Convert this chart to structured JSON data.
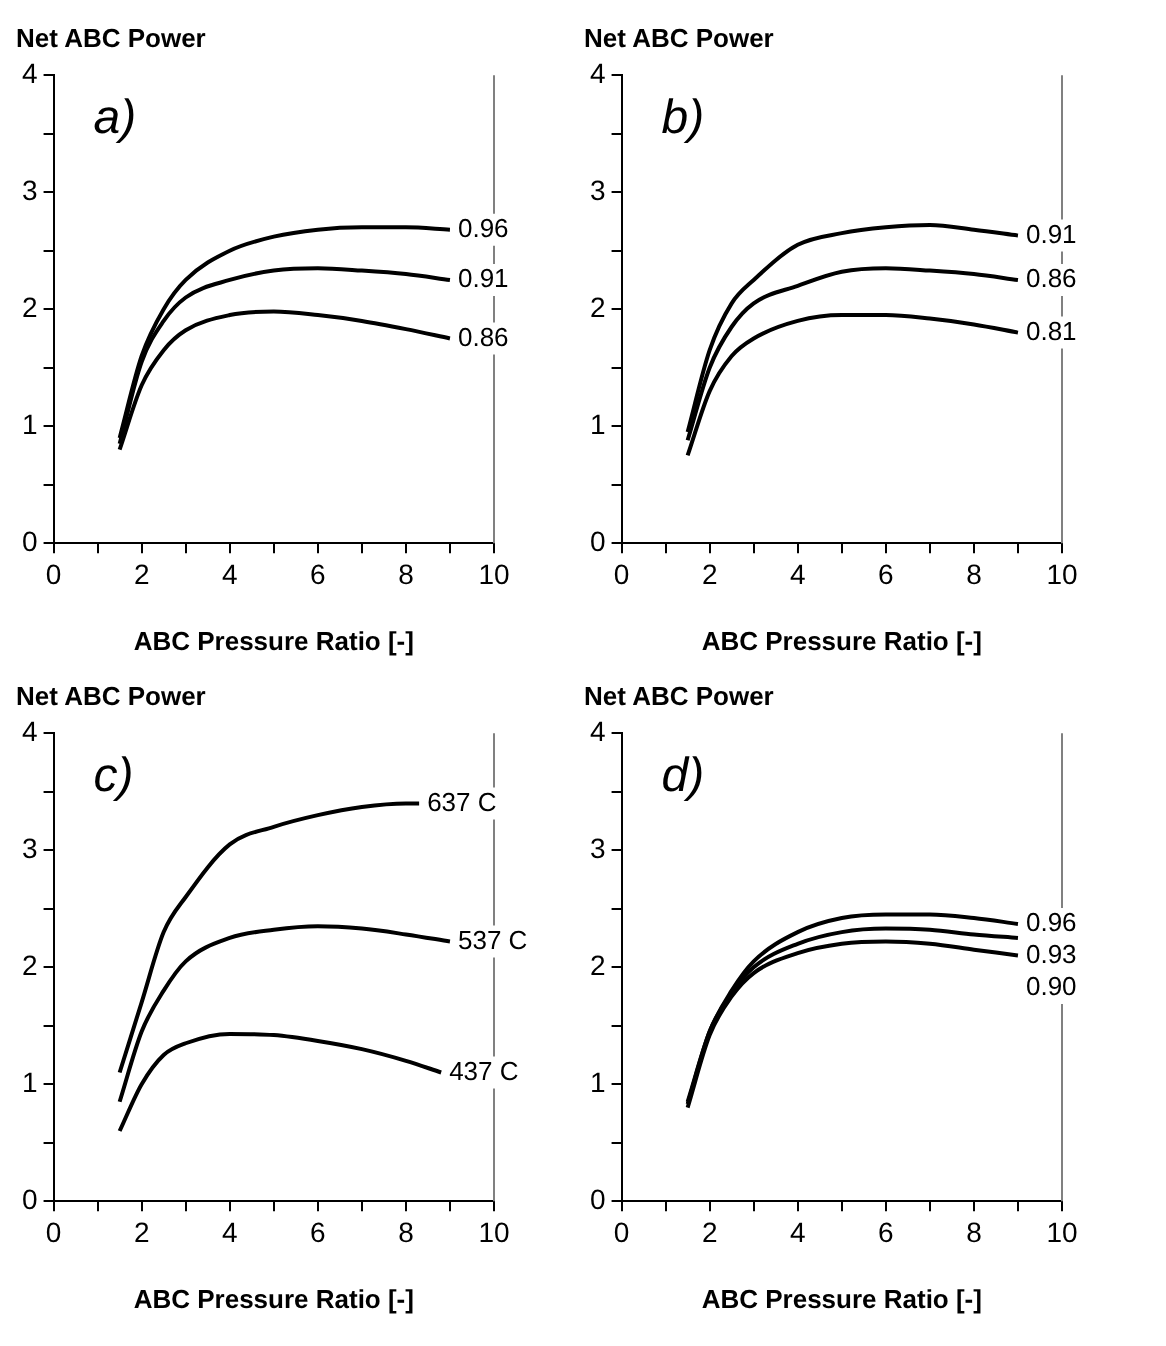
{
  "chart_data": [
    {
      "type": "line",
      "title": "Net ABC Power",
      "xlabel": "ABC Pressure Ratio [-]",
      "annotations": [
        "a)"
      ],
      "xlim": [
        0,
        10
      ],
      "ylim": [
        0,
        4
      ],
      "xticks": [
        0,
        {
          "value": 1,
          "label": null
        },
        2,
        {
          "value": 3,
          "label": null
        },
        4,
        {
          "value": 5,
          "label": null
        },
        6,
        {
          "value": 7,
          "label": null
        },
        8,
        {
          "value": 9,
          "label": null
        },
        10
      ],
      "yticks": [
        0,
        {
          "value": 0.5,
          "label": null
        },
        1,
        {
          "value": 1.5,
          "label": null
        },
        2,
        {
          "value": 2.5,
          "label": null
        },
        3,
        {
          "value": 3.5,
          "label": null
        },
        4
      ],
      "grid": false,
      "legend": false,
      "marker": "none",
      "line_style": "solid",
      "x": [
        1.5,
        2,
        2.5,
        3,
        4,
        5,
        6,
        7,
        8,
        9
      ],
      "series": [
        {
          "name": "0.96",
          "color": "#000000",
          "values": [
            0.9,
            1.6,
            2.0,
            2.25,
            2.5,
            2.62,
            2.68,
            2.7,
            2.7,
            2.68
          ]
        },
        {
          "name": "0.91",
          "color": "#000000",
          "values": [
            0.85,
            1.55,
            1.9,
            2.1,
            2.25,
            2.33,
            2.35,
            2.33,
            2.3,
            2.25
          ]
        },
        {
          "name": "0.86",
          "color": "#000000",
          "values": [
            0.8,
            1.35,
            1.65,
            1.82,
            1.95,
            1.98,
            1.95,
            1.9,
            1.83,
            1.75
          ]
        }
      ]
    },
    {
      "type": "line",
      "title": "Net ABC Power",
      "xlabel": "ABC Pressure Ratio [-]",
      "annotations": [
        "b)"
      ],
      "xlim": [
        0,
        10
      ],
      "ylim": [
        0,
        4
      ],
      "xticks": [
        0,
        {
          "value": 1,
          "label": null
        },
        2,
        {
          "value": 3,
          "label": null
        },
        4,
        {
          "value": 5,
          "label": null
        },
        6,
        {
          "value": 7,
          "label": null
        },
        8,
        {
          "value": 9,
          "label": null
        },
        10
      ],
      "yticks": [
        0,
        {
          "value": 0.5,
          "label": null
        },
        1,
        {
          "value": 1.5,
          "label": null
        },
        2,
        {
          "value": 2.5,
          "label": null
        },
        3,
        {
          "value": 3.5,
          "label": null
        },
        4
      ],
      "grid": false,
      "legend": false,
      "marker": "none",
      "line_style": "solid",
      "x": [
        1.5,
        2,
        2.5,
        3,
        4,
        5,
        6,
        7,
        8,
        9
      ],
      "series": [
        {
          "name": "0.91",
          "color": "#000000",
          "values": [
            0.95,
            1.65,
            2.05,
            2.25,
            2.55,
            2.65,
            2.7,
            2.72,
            2.68,
            2.63
          ]
        },
        {
          "name": "0.86",
          "color": "#000000",
          "values": [
            0.88,
            1.5,
            1.85,
            2.05,
            2.2,
            2.32,
            2.35,
            2.33,
            2.3,
            2.25
          ]
        },
        {
          "name": "0.81",
          "color": "#000000",
          "values": [
            0.75,
            1.3,
            1.6,
            1.75,
            1.9,
            1.95,
            1.95,
            1.92,
            1.87,
            1.8
          ]
        }
      ]
    },
    {
      "type": "line",
      "title": "Net ABC Power",
      "xlabel": "ABC Pressure Ratio [-]",
      "annotations": [
        "c)"
      ],
      "xlim": [
        0,
        10
      ],
      "ylim": [
        0,
        4
      ],
      "xticks": [
        0,
        {
          "value": 1,
          "label": null
        },
        2,
        {
          "value": 3,
          "label": null
        },
        4,
        {
          "value": 5,
          "label": null
        },
        6,
        {
          "value": 7,
          "label": null
        },
        8,
        {
          "value": 9,
          "label": null
        },
        10
      ],
      "yticks": [
        0,
        {
          "value": 0.5,
          "label": null
        },
        1,
        {
          "value": 1.5,
          "label": null
        },
        2,
        {
          "value": 2.5,
          "label": null
        },
        3,
        {
          "value": 3.5,
          "label": null
        },
        4
      ],
      "grid": false,
      "legend": false,
      "marker": "none",
      "line_style": "solid",
      "series": [
        {
          "name": "637 C",
          "color": "#000000",
          "x": [
            1.5,
            2,
            2.5,
            3,
            4,
            5,
            6,
            7,
            8,
            8.3
          ],
          "values": [
            1.1,
            1.7,
            2.3,
            2.6,
            3.05,
            3.2,
            3.3,
            3.37,
            3.4,
            3.4
          ]
        },
        {
          "name": "537 C",
          "color": "#000000",
          "x": [
            1.5,
            2,
            2.5,
            3,
            4,
            5,
            6,
            7,
            8,
            9
          ],
          "values": [
            0.85,
            1.45,
            1.8,
            2.05,
            2.25,
            2.32,
            2.35,
            2.33,
            2.28,
            2.22
          ]
        },
        {
          "name": "437 C",
          "color": "#000000",
          "x": [
            1.5,
            2,
            2.5,
            3,
            4,
            5,
            6,
            7,
            8,
            8.8
          ],
          "values": [
            0.6,
            1.0,
            1.25,
            1.35,
            1.43,
            1.42,
            1.37,
            1.3,
            1.2,
            1.1
          ]
        }
      ]
    },
    {
      "type": "line",
      "title": "Net ABC Power",
      "xlabel": "ABC Pressure Ratio [-]",
      "annotations": [
        "d)"
      ],
      "xlim": [
        0,
        10
      ],
      "ylim": [
        0,
        4
      ],
      "xticks": [
        0,
        {
          "value": 1,
          "label": null
        },
        2,
        {
          "value": 3,
          "label": null
        },
        4,
        {
          "value": 5,
          "label": null
        },
        6,
        {
          "value": 7,
          "label": null
        },
        8,
        {
          "value": 9,
          "label": null
        },
        10
      ],
      "yticks": [
        0,
        {
          "value": 0.5,
          "label": null
        },
        1,
        {
          "value": 1.5,
          "label": null
        },
        2,
        {
          "value": 2.5,
          "label": null
        },
        3,
        {
          "value": 3.5,
          "label": null
        },
        4
      ],
      "grid": false,
      "legend": false,
      "marker": "none",
      "line_style": "solid",
      "x": [
        1.5,
        2,
        2.5,
        3,
        4,
        5,
        6,
        7,
        8,
        9
      ],
      "series": [
        {
          "name": "0.96",
          "color": "#000000",
          "values": [
            0.85,
            1.45,
            1.8,
            2.05,
            2.3,
            2.42,
            2.45,
            2.45,
            2.42,
            2.37
          ]
        },
        {
          "name": "0.93",
          "color": "#000000",
          "values": [
            0.83,
            1.45,
            1.78,
            2.0,
            2.2,
            2.3,
            2.33,
            2.32,
            2.28,
            2.25
          ]
        },
        {
          "name": "0.90",
          "color": "#000000",
          "values": [
            0.8,
            1.42,
            1.75,
            1.95,
            2.12,
            2.2,
            2.22,
            2.2,
            2.15,
            2.1
          ]
        }
      ]
    }
  ]
}
